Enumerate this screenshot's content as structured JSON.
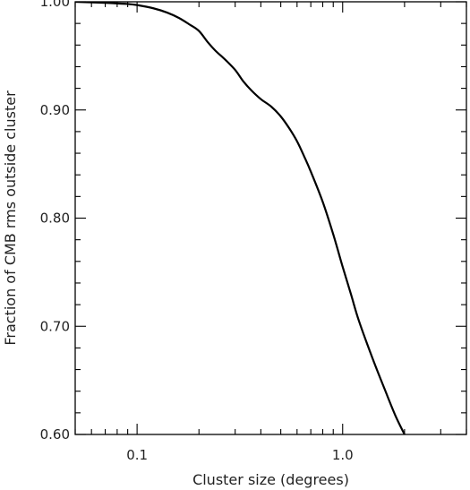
{
  "chart_data": {
    "type": "line",
    "title": "",
    "xlabel": "Cluster size (degrees)",
    "ylabel": "Fraction of CMB rms outside cluster",
    "x_scale": "log",
    "xlim": [
      0.05,
      4.0
    ],
    "ylim": [
      0.6,
      1.0
    ],
    "x_ticks": [
      {
        "value": 0.1,
        "label": "0.1"
      },
      {
        "value": 1.0,
        "label": "1.0"
      }
    ],
    "y_ticks": [
      {
        "value": 1.0,
        "label": "1.00"
      },
      {
        "value": 0.9,
        "label": "0.90"
      },
      {
        "value": 0.8,
        "label": "0.80"
      },
      {
        "value": 0.7,
        "label": "0.70"
      },
      {
        "value": 0.6,
        "label": "0.60"
      }
    ],
    "grid": false,
    "line_color": "#000000",
    "series": [
      {
        "x": [
          0.05,
          0.07,
          0.09,
          0.1,
          0.12,
          0.14,
          0.16,
          0.18,
          0.2,
          0.22,
          0.24,
          0.27,
          0.3,
          0.33,
          0.36,
          0.4,
          0.45,
          0.5,
          0.55,
          0.6,
          0.65,
          0.7,
          0.8,
          0.9,
          1.0,
          1.1,
          1.2,
          1.4,
          1.6,
          1.8,
          2.0,
          2.05
        ],
        "y": [
          1.0,
          0.999,
          0.998,
          0.997,
          0.994,
          0.99,
          0.985,
          0.979,
          0.973,
          0.963,
          0.955,
          0.946,
          0.937,
          0.926,
          0.918,
          0.91,
          0.903,
          0.894,
          0.883,
          0.871,
          0.857,
          0.843,
          0.815,
          0.785,
          0.755,
          0.729,
          0.705,
          0.67,
          0.642,
          0.618,
          0.6,
          0.596
        ]
      }
    ]
  }
}
